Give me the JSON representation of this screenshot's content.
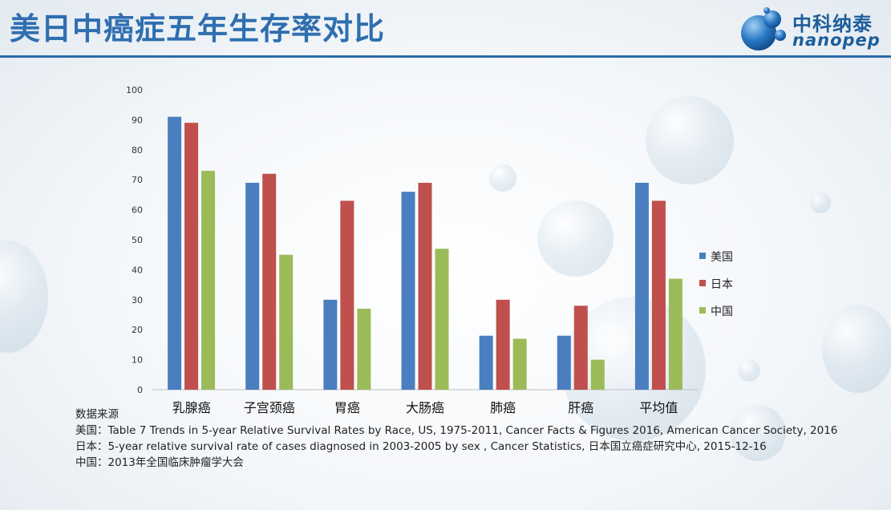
{
  "title": "美日中癌症五年生存率对比",
  "logo": {
    "cn": "中科纳泰",
    "en": "nanopep"
  },
  "colors": {
    "accent": "#2c6ba8",
    "title": "#2f6fb0"
  },
  "chart_data": {
    "type": "bar",
    "categories": [
      "乳腺癌",
      "子宫颈癌",
      "胃癌",
      "大肠癌",
      "肺癌",
      "肝癌",
      "平均值"
    ],
    "series": [
      {
        "name": "美国",
        "color": "#4a7ebf",
        "values": [
          91,
          69,
          30,
          66,
          18,
          18,
          69
        ]
      },
      {
        "name": "日本",
        "color": "#c0504d",
        "values": [
          89,
          72,
          63,
          69,
          30,
          28,
          63
        ]
      },
      {
        "name": "中国",
        "color": "#9bbb59",
        "values": [
          73,
          45,
          27,
          47,
          17,
          10,
          37
        ]
      }
    ],
    "ylim": [
      0,
      100
    ],
    "yticks": [
      0,
      10,
      20,
      30,
      40,
      50,
      60,
      70,
      80,
      90,
      100
    ],
    "grid": false,
    "legend": "right"
  },
  "sources": {
    "heading": "数据来源",
    "us": "美国：Table 7 Trends in 5-year Relative Survival Rates by Race, US, 1975-2011, Cancer Facts & Figures 2016, American Cancer Society, 2016",
    "jp": "日本：5-year relative survival rate of cases diagnosed in 2003-2005 by sex , Cancer Statistics, 日本国立癌症研究中心, 2015-12-16",
    "cn": "中国：2013年全国临床肿瘤学大会"
  }
}
